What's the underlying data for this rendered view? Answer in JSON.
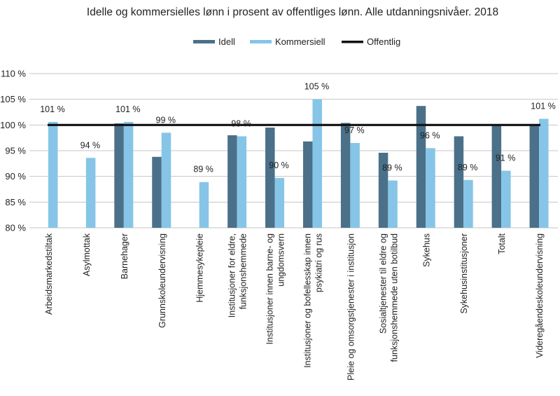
{
  "chart_data": {
    "type": "bar",
    "title": "Idelle og kommersielles lønn i prosent av offentliges lønn. Alle utdanningsnivåer. 2018",
    "xlabel": "",
    "ylabel": "",
    "ylim": [
      80,
      110
    ],
    "yticks": [
      80,
      85,
      90,
      95,
      100,
      105,
      110
    ],
    "ytick_labels": [
      "80 %",
      "85 %",
      "90 %",
      "95 %",
      "100 %",
      "105 %",
      "110 %"
    ],
    "grid": true,
    "legend_position": "top-center",
    "categories": [
      [
        "Arbeidsmarkedstiltak"
      ],
      [
        "Asylmottak"
      ],
      [
        "Barnehager"
      ],
      [
        "Grunnskoleundervisning"
      ],
      [
        "Hjemmesykepleie"
      ],
      [
        "Institusjoner for eldre,",
        "funksjonshemmede"
      ],
      [
        "Institusjoner innen barne- og",
        "ungdomsvern"
      ],
      [
        "Institusjoner og bofellesskap innen",
        "psykiatri og rus"
      ],
      [
        "Pleie og omsorgstjenester i institusjon"
      ],
      [
        "Sosialtjenester til eldre og",
        "funksjonshemmede uten botilbud"
      ],
      [
        "Sykehus"
      ],
      [
        "Sykehusinstitusjoner"
      ],
      [
        "Totalt"
      ],
      [
        "Videregåendeskoleundervisning"
      ]
    ],
    "series": [
      {
        "name": "Idell",
        "color": "#4b7089",
        "values": [
          null,
          null,
          100.3,
          93.8,
          null,
          98.0,
          99.5,
          96.8,
          100.4,
          94.6,
          103.7,
          97.8,
          100.0,
          100.0
        ]
      },
      {
        "name": "Kommersiell",
        "color": "#86c5e7",
        "values": [
          100.6,
          93.6,
          100.6,
          98.5,
          88.9,
          97.8,
          89.7,
          105.0,
          96.5,
          89.2,
          95.5,
          89.3,
          91.1,
          101.2
        ],
        "data_labels": [
          "101 %",
          "94 %",
          "101 %",
          "99 %",
          "89 %",
          "98 %",
          "90 %",
          "105 %",
          "97 %",
          "89 %",
          "96 %",
          "89 %",
          "91 %",
          "101 %"
        ]
      },
      {
        "name": "Offentlig",
        "type": "line",
        "color": "#111111",
        "value": 100
      }
    ]
  }
}
